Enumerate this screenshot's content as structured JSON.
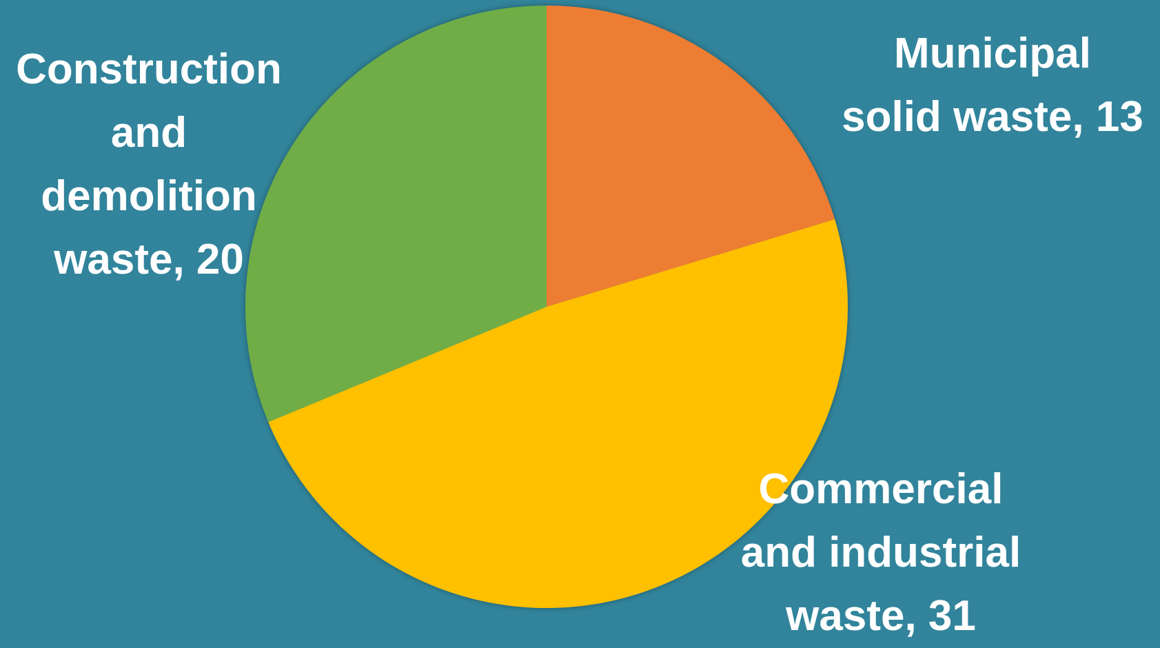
{
  "chart_data": {
    "type": "pie",
    "title": "",
    "slices": [
      {
        "label": "Municipal solid waste",
        "value": 13,
        "color": "#ed7d31",
        "data_label": "Municipal\nsolid waste, 13"
      },
      {
        "label": "Commercial and industrial waste",
        "value": 31,
        "color": "#ffc000",
        "data_label": "Commercial\nand industrial\nwaste, 31"
      },
      {
        "label": "Construction and demolition waste",
        "value": 20,
        "color": "#70ad47",
        "data_label": "Construction\nand\ndemolition\nwaste, 20"
      }
    ],
    "start_angle": "12 o'clock",
    "direction": "clockwise",
    "legend": "none"
  },
  "colors": {
    "background": "#31849b",
    "label_text": "#ffffff"
  }
}
